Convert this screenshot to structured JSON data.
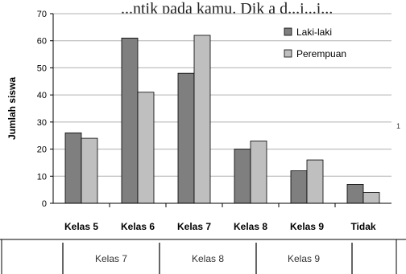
{
  "background_text": "...ntik pada kamu. Dik a d...i...i...",
  "side_mark": "1",
  "table_row": [
    "Kelas 7",
    "Kelas 8",
    "Kelas 9"
  ],
  "colors": {
    "laki": "#7f7f7f",
    "perempuan": "#bfbfbf",
    "grid": "#b0b0b0",
    "axis": "#000000"
  },
  "chart_data": {
    "type": "bar",
    "title": "",
    "xlabel": "",
    "ylabel": "Jumlah siswa",
    "ylim": [
      0,
      70
    ],
    "yticks": [
      0,
      10,
      20,
      30,
      40,
      50,
      60,
      70
    ],
    "grid": true,
    "legend_position": "top-right",
    "categories": [
      "Kelas 5",
      "Kelas 6",
      "Kelas 7",
      "Kelas 8",
      "Kelas 9",
      "Tidak"
    ],
    "series": [
      {
        "name": "Laki-laki",
        "values": [
          26,
          61,
          48,
          20,
          12,
          7
        ]
      },
      {
        "name": "Perempuan",
        "values": [
          24,
          41,
          62,
          23,
          16,
          4
        ]
      }
    ]
  }
}
